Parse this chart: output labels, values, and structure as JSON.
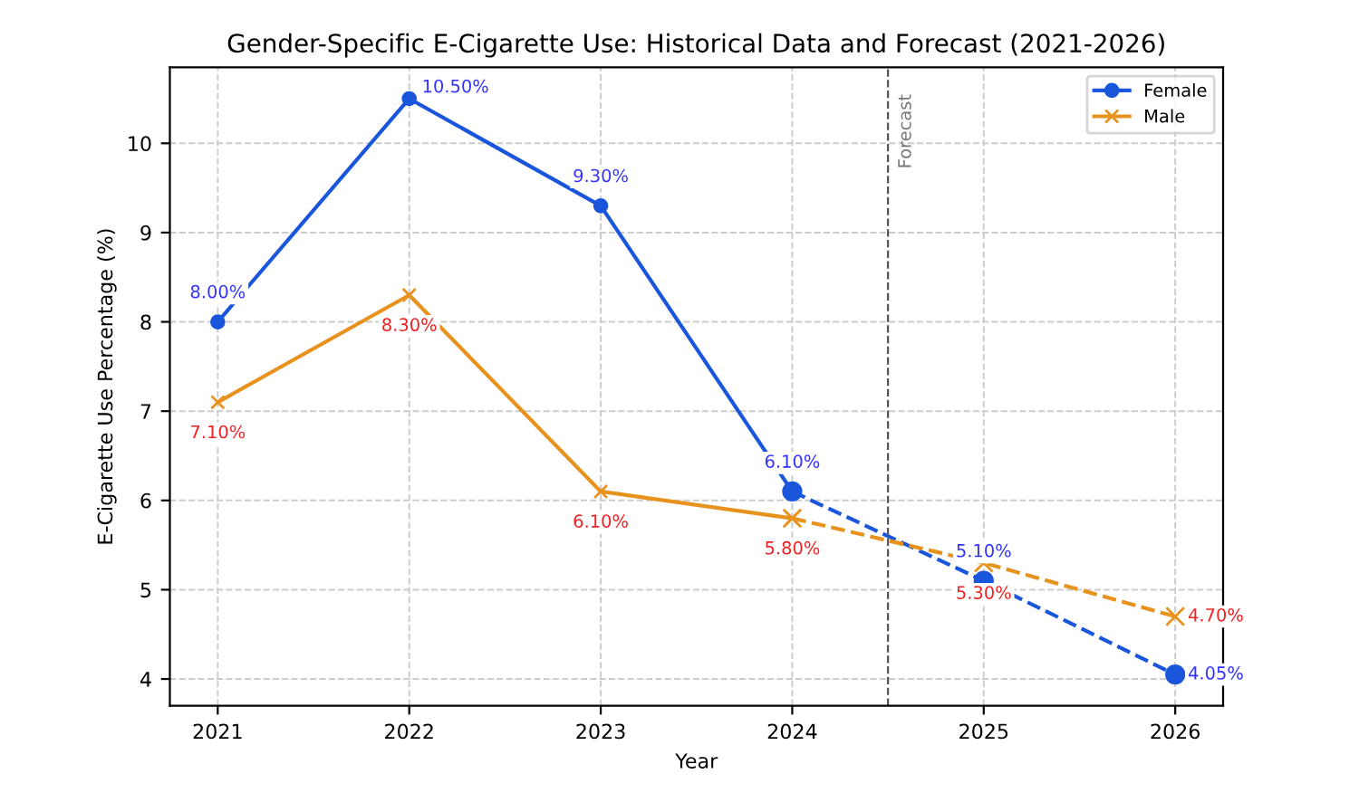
{
  "chart_data": {
    "type": "line",
    "title": "Gender-Specific E-Cigarette Use: Historical Data and Forecast (2021-2026)",
    "xlabel": "Year",
    "ylabel": "E-Cigarette Use Percentage (%)",
    "x": [
      2021,
      2022,
      2023,
      2024,
      2025,
      2026
    ],
    "series": [
      {
        "name": "Female",
        "color": "#1a56db",
        "marker": "circle",
        "line_style": "solid",
        "values": [
          8.0,
          10.5,
          9.3,
          6.1,
          null,
          null
        ],
        "value_labels": [
          "8.00%",
          "10.50%",
          "9.30%",
          "6.10%",
          null,
          null
        ]
      },
      {
        "name": "Male",
        "color": "#e8921e",
        "marker": "cross",
        "line_style": "solid",
        "values": [
          7.1,
          8.3,
          6.1,
          5.8,
          null,
          null
        ],
        "value_labels": [
          "7.10%",
          "8.30%",
          "6.10%",
          "5.80%",
          null,
          null
        ]
      },
      {
        "color": "#1a56db",
        "marker": "circle",
        "line_style": "dashed",
        "values": [
          null,
          null,
          null,
          6.1,
          5.1,
          4.05
        ],
        "value_labels": [
          null,
          null,
          null,
          null,
          "5.10%",
          "4.05%"
        ]
      },
      {
        "color": "#e8921e",
        "marker": "cross",
        "line_style": "dashed",
        "values": [
          null,
          null,
          null,
          5.8,
          5.3,
          4.7
        ],
        "value_labels": [
          null,
          null,
          null,
          null,
          "5.30%",
          "4.70%"
        ]
      }
    ],
    "ref_lines": [
      {
        "axis": "x",
        "value": 2024.5,
        "label": "Forecast",
        "color": "#555555",
        "line_style": "dashed"
      }
    ],
    "xlim": [
      2020.75,
      2026.25
    ],
    "xticks": [
      2021,
      2022,
      2023,
      2024,
      2025,
      2026
    ],
    "ylim": [
      3.7,
      10.85
    ],
    "yticks": [
      4,
      5,
      6,
      7,
      8,
      9,
      10
    ],
    "grid": true,
    "legend": "top right"
  }
}
